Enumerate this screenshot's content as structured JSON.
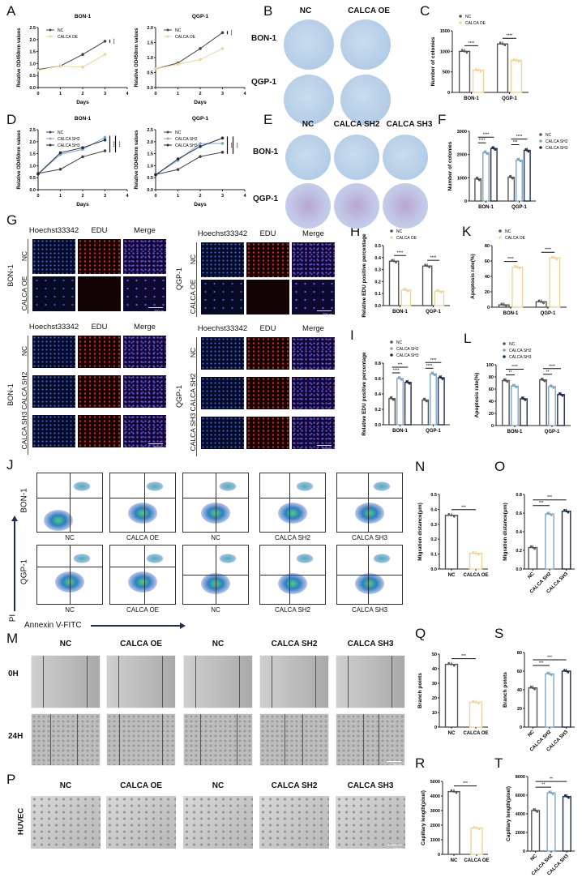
{
  "panels": {
    "A": "A",
    "B": "B",
    "C": "C",
    "D": "D",
    "E": "E",
    "F": "F",
    "G": "G",
    "H": "H",
    "I": "I",
    "J": "J",
    "K": "K",
    "L": "L",
    "M": "M",
    "N": "N",
    "O": "O",
    "P": "P",
    "Q": "Q",
    "R": "R",
    "S": "S",
    "T": "T"
  },
  "colors": {
    "NC": "#555555",
    "CALCA OE": "#f2d49a",
    "CALCA SH2": "#7ea6c6",
    "CALCA SH3": "#1e2b4f"
  },
  "B": {
    "cols": [
      "NC",
      "CALCA OE"
    ],
    "rows": [
      "BON-1",
      "QGP-1"
    ]
  },
  "E": {
    "cols": [
      "NC",
      "CALCA SH2",
      "CALCA SH3"
    ],
    "rows": [
      "BON-1",
      "QGP-1"
    ]
  },
  "G": {
    "channels": [
      "Hoechst33342",
      "EDU",
      "Merge"
    ],
    "oe_rows": [
      "NC",
      "CALCA OE"
    ],
    "sh_rows": [
      "NC",
      "CALCA SH2",
      "CALCA SH3"
    ],
    "cell_lines": [
      "BON-1",
      "QGP-1"
    ],
    "scale_bar": "200μm"
  },
  "J": {
    "row_labels": [
      "BON-1",
      "QGP-1"
    ],
    "col_labels": [
      "NC",
      "CALCA OE",
      "NC",
      "CALCA SH2",
      "CALCA SH3"
    ],
    "y_axis": "PI",
    "x_axis": "Annexin V-FITC"
  },
  "M": {
    "cols": [
      "NC",
      "CALCA OE",
      "NC",
      "CALCA SH2",
      "CALCA SH3"
    ],
    "rows": [
      "0H",
      "24H"
    ],
    "scale_bar": "100μm"
  },
  "P": {
    "cols": [
      "NC",
      "CALCA OE",
      "NC",
      "CALCA SH2",
      "CALCA SH3"
    ],
    "row": "HUVEC",
    "scale_bar": "100μm"
  },
  "chart_data": [
    {
      "panel": "A",
      "type": "line",
      "title": "BON-1",
      "xlabel": "Days",
      "ylabel": "Relative OD450nm values",
      "x": [
        0,
        1,
        2,
        3
      ],
      "xticks": [
        "0",
        "1",
        "2",
        "3",
        "4"
      ],
      "xlim": [
        0,
        4
      ],
      "ylim": [
        0,
        2.5
      ],
      "yticks": [
        "0.0",
        "0.5",
        "1.0",
        "1.5",
        "2.0",
        "2.5"
      ],
      "legend": "top-left",
      "series": [
        {
          "name": "NC",
          "values": [
            0.75,
            0.9,
            1.38,
            1.93
          ],
          "color": "#444444"
        },
        {
          "name": "CALCA OE",
          "values": [
            0.72,
            0.9,
            0.85,
            1.38
          ],
          "color": "#f2d49a"
        }
      ],
      "sig": [
        "****"
      ]
    },
    {
      "panel": "A",
      "type": "line",
      "title": "QGP-1",
      "xlabel": "Days",
      "ylabel": "Relative OD450nm values",
      "x": [
        0,
        1,
        2,
        3
      ],
      "xticks": [
        "0",
        "1",
        "2",
        "3",
        "4"
      ],
      "xlim": [
        0,
        4
      ],
      "ylim": [
        0,
        2.0
      ],
      "yticks": [
        "0.0",
        "0.5",
        "1.0",
        "1.5",
        "2.0"
      ],
      "legend": "top-left",
      "series": [
        {
          "name": "NC",
          "values": [
            0.62,
            0.82,
            1.3,
            1.83
          ],
          "color": "#444444"
        },
        {
          "name": "CALCA OE",
          "values": [
            0.62,
            0.78,
            0.93,
            1.3
          ],
          "color": "#f2d49a"
        }
      ],
      "sig": [
        "****"
      ]
    },
    {
      "panel": "D",
      "type": "line",
      "title": "BON-1",
      "xlabel": "Days",
      "ylabel": "Relative OD450nm values",
      "x": [
        0,
        1,
        2,
        3
      ],
      "xticks": [
        "0",
        "1",
        "2",
        "3",
        "4"
      ],
      "xlim": [
        0,
        4
      ],
      "ylim": [
        0,
        2.5
      ],
      "yticks": [
        "0.0",
        "0.5",
        "1.0",
        "1.5",
        "2.0",
        "2.5"
      ],
      "legend": "top-left",
      "series": [
        {
          "name": "NC",
          "values": [
            0.68,
            0.85,
            1.37,
            1.62
          ],
          "color": "#444444"
        },
        {
          "name": "CALCA SH2",
          "values": [
            0.65,
            1.47,
            1.68,
            2.18
          ],
          "color": "#7ea6c6"
        },
        {
          "name": "CALCA SH3",
          "values": [
            0.65,
            1.54,
            1.75,
            2.07
          ],
          "color": "#1e2b4f"
        }
      ],
      "sig": [
        "****",
        "****"
      ]
    },
    {
      "panel": "D",
      "type": "line",
      "title": "QGP-1",
      "xlabel": "Days",
      "ylabel": "Relative OD450nm values",
      "x": [
        0,
        1,
        2,
        3
      ],
      "xticks": [
        "0",
        "1",
        "2",
        "3",
        "4"
      ],
      "xlim": [
        0,
        4
      ],
      "ylim": [
        0,
        2.5
      ],
      "yticks": [
        "0.0",
        "0.5",
        "1.0",
        "1.5",
        "2.0",
        "2.5"
      ],
      "legend": "top-left",
      "series": [
        {
          "name": "NC",
          "values": [
            0.63,
            0.84,
            1.38,
            1.56
          ],
          "color": "#444444"
        },
        {
          "name": "CALCA SH2",
          "values": [
            0.62,
            1.22,
            1.92,
            1.93
          ],
          "color": "#7ea6c6"
        },
        {
          "name": "CALCA SH3",
          "values": [
            0.62,
            1.28,
            1.8,
            2.15
          ],
          "color": "#1e2b4f"
        }
      ],
      "sig": [
        "****",
        "****"
      ]
    },
    {
      "panel": "C",
      "type": "bar",
      "ylabel": "Number of colonies",
      "categories": [
        "BON-1",
        "QGP-1"
      ],
      "ylim": [
        0,
        1500
      ],
      "yticks": [
        "0",
        "500",
        "1000",
        "1500"
      ],
      "legend": "top-left",
      "series": [
        {
          "name": "NC",
          "values": [
            1000,
            1180
          ],
          "color": "#555555"
        },
        {
          "name": "CALCA OE",
          "values": [
            540,
            780
          ],
          "color": "#f2d49a"
        }
      ],
      "sig": [
        {
          "g": 0,
          "a": 0,
          "b": 1,
          "text": "****"
        },
        {
          "g": 1,
          "a": 0,
          "b": 1,
          "text": "****"
        }
      ]
    },
    {
      "panel": "F",
      "type": "bar",
      "ylabel": "Number of colonies",
      "categories": [
        "BON-1",
        "QGP-1"
      ],
      "ylim": [
        0,
        3000
      ],
      "yticks": [
        "0",
        "1000",
        "2000",
        "3000"
      ],
      "legend": "top-right",
      "series": [
        {
          "name": "NC",
          "values": [
            950,
            1020
          ],
          "color": "#555555"
        },
        {
          "name": "CALCA SH2",
          "values": [
            2080,
            1760
          ],
          "color": "#7ea6c6"
        },
        {
          "name": "CALCA SH3",
          "values": [
            2260,
            2180
          ],
          "color": "#1e2b4f"
        }
      ],
      "sig": [
        {
          "g": 0,
          "a": 0,
          "b": 1,
          "text": "****"
        },
        {
          "g": 0,
          "a": 0,
          "b": 2,
          "text": "****"
        },
        {
          "g": 1,
          "a": 0,
          "b": 1,
          "text": "***"
        },
        {
          "g": 1,
          "a": 0,
          "b": 2,
          "text": "****"
        }
      ]
    },
    {
      "panel": "H",
      "type": "bar",
      "ylabel": "Relative EDU positive percentage",
      "categories": [
        "BON-1",
        "QGP-1"
      ],
      "ylim": [
        0,
        0.5
      ],
      "yticks": [
        "0.0",
        "0.1",
        "0.2",
        "0.3",
        "0.4",
        "0.5"
      ],
      "legend": "top-left",
      "series": [
        {
          "name": "NC",
          "values": [
            0.37,
            0.33
          ],
          "color": "#555555"
        },
        {
          "name": "CALCA OE",
          "values": [
            0.13,
            0.12
          ],
          "color": "#f2d49a"
        }
      ],
      "sig": [
        {
          "g": 0,
          "a": 0,
          "b": 1,
          "text": "****"
        },
        {
          "g": 1,
          "a": 0,
          "b": 1,
          "text": "****"
        }
      ]
    },
    {
      "panel": "K",
      "type": "bar",
      "ylabel": "Apoptosis rate(%)",
      "categories": [
        "BON-1",
        "QGP-1"
      ],
      "ylim": [
        0,
        80
      ],
      "yticks": [
        "0",
        "20",
        "40",
        "60",
        "80"
      ],
      "legend": "top-left",
      "series": [
        {
          "name": "NC",
          "values": [
            3,
            7
          ],
          "color": "#555555"
        },
        {
          "name": "CALCA OE",
          "values": [
            52,
            64
          ],
          "color": "#f2d49a"
        }
      ],
      "sig": [
        {
          "g": 0,
          "a": 0,
          "b": 1,
          "text": "****"
        },
        {
          "g": 1,
          "a": 0,
          "b": 1,
          "text": "****"
        }
      ]
    },
    {
      "panel": "I",
      "type": "bar",
      "ylabel": "Relative EDU positive percentage",
      "categories": [
        "BON-1",
        "QGP-1"
      ],
      "ylim": [
        0,
        0.8
      ],
      "yticks": [
        "0.0",
        "0.2",
        "0.4",
        "0.6",
        "0.8"
      ],
      "legend": "top-left",
      "series": [
        {
          "name": "NC",
          "values": [
            0.34,
            0.32
          ],
          "color": "#555555"
        },
        {
          "name": "CALCA SH2",
          "values": [
            0.6,
            0.66
          ],
          "color": "#7ea6c6"
        },
        {
          "name": "CALCA SH3",
          "values": [
            0.55,
            0.61
          ],
          "color": "#1e2b4f"
        }
      ],
      "sig": [
        {
          "g": 0,
          "a": 0,
          "b": 1,
          "text": "****"
        },
        {
          "g": 0,
          "a": 0,
          "b": 2,
          "text": "***"
        },
        {
          "g": 1,
          "a": 0,
          "b": 1,
          "text": "****"
        },
        {
          "g": 1,
          "a": 0,
          "b": 2,
          "text": "****"
        }
      ]
    },
    {
      "panel": "L",
      "type": "bar",
      "ylabel": "Apoptosis rate(%)",
      "categories": [
        "BON-1",
        "QGP-1"
      ],
      "ylim": [
        0,
        100
      ],
      "yticks": [
        "0",
        "20",
        "40",
        "60",
        "80",
        "100"
      ],
      "legend": "top-left",
      "series": [
        {
          "name": "NC",
          "values": [
            74,
            75
          ],
          "color": "#555555"
        },
        {
          "name": "CALCA SH2",
          "values": [
            65,
            64
          ],
          "color": "#7ea6c6"
        },
        {
          "name": "CALCA SH3",
          "values": [
            44,
            51
          ],
          "color": "#1e2b4f"
        }
      ],
      "sig": [
        {
          "g": 0,
          "a": 0,
          "b": 1,
          "text": "**"
        },
        {
          "g": 0,
          "a": 0,
          "b": 2,
          "text": "****"
        },
        {
          "g": 1,
          "a": 0,
          "b": 1,
          "text": "**"
        },
        {
          "g": 1,
          "a": 0,
          "b": 2,
          "text": "****"
        }
      ]
    },
    {
      "panel": "N",
      "type": "bar",
      "ylabel": "Migration distance(μm)",
      "categories": [
        "NC",
        "CALCA OE"
      ],
      "values": [
        0.36,
        0.105
      ],
      "colors": [
        "#555555",
        "#f2d49a"
      ],
      "ylim": [
        0,
        0.5
      ],
      "yticks": [
        "0.0",
        "0.1",
        "0.2",
        "0.3",
        "0.4",
        "0.5"
      ],
      "sig": [
        {
          "a": 0,
          "b": 1,
          "text": "***"
        }
      ]
    },
    {
      "panel": "O",
      "type": "bar",
      "ylabel": "Migration distance(μm)",
      "categories": [
        "NC",
        "CALCA SH2",
        "CALCA SH3"
      ],
      "values": [
        0.23,
        0.59,
        0.62
      ],
      "colors": [
        "#555555",
        "#7ea6c6",
        "#1e2b4f"
      ],
      "ylim": [
        0,
        0.8
      ],
      "yticks": [
        "0.0",
        "0.2",
        "0.4",
        "0.6",
        "0.8"
      ],
      "sig": [
        {
          "a": 0,
          "b": 1,
          "text": "***"
        },
        {
          "a": 0,
          "b": 2,
          "text": "***"
        }
      ]
    },
    {
      "panel": "Q",
      "type": "bar",
      "ylabel": "Branch points",
      "categories": [
        "NC",
        "CALCA OE"
      ],
      "values": [
        43,
        17
      ],
      "colors": [
        "#555555",
        "#f2d49a"
      ],
      "ylim": [
        0,
        50
      ],
      "yticks": [
        "0",
        "10",
        "20",
        "30",
        "40",
        "50"
      ],
      "sig": [
        {
          "a": 0,
          "b": 1,
          "text": "***"
        }
      ]
    },
    {
      "panel": "S",
      "type": "bar",
      "ylabel": "Branch points",
      "categories": [
        "NC",
        "CALCA SH2",
        "CALCA SH3"
      ],
      "values": [
        42,
        57,
        60
      ],
      "colors": [
        "#555555",
        "#7ea6c6",
        "#1e2b4f"
      ],
      "ylim": [
        0,
        80
      ],
      "yticks": [
        "0",
        "20",
        "40",
        "60",
        "80"
      ],
      "sig": [
        {
          "a": 0,
          "b": 1,
          "text": "***"
        },
        {
          "a": 0,
          "b": 2,
          "text": "***"
        }
      ]
    },
    {
      "panel": "R",
      "type": "bar",
      "ylabel": "Capillary length(pixel)",
      "categories": [
        "NC",
        "CALCA OE"
      ],
      "values": [
        4300,
        1800
      ],
      "colors": [
        "#555555",
        "#f2d49a"
      ],
      "ylim": [
        0,
        5000
      ],
      "yticks": [
        "0",
        "1000",
        "2000",
        "3000",
        "4000",
        "5000"
      ],
      "sig": [
        {
          "a": 0,
          "b": 1,
          "text": "***"
        }
      ]
    },
    {
      "panel": "T",
      "type": "bar",
      "ylabel": "Capillary length(pixel)",
      "categories": [
        "NC",
        "CALCA SH2",
        "CALCA SH3"
      ],
      "values": [
        4350,
        6250,
        5850
      ],
      "colors": [
        "#555555",
        "#7ea6c6",
        "#1e2b4f"
      ],
      "ylim": [
        0,
        8000
      ],
      "yticks": [
        "0",
        "2000",
        "4000",
        "6000",
        "8000"
      ],
      "sig": [
        {
          "a": 0,
          "b": 1,
          "text": "**"
        },
        {
          "a": 0,
          "b": 2,
          "text": "**"
        }
      ]
    }
  ]
}
